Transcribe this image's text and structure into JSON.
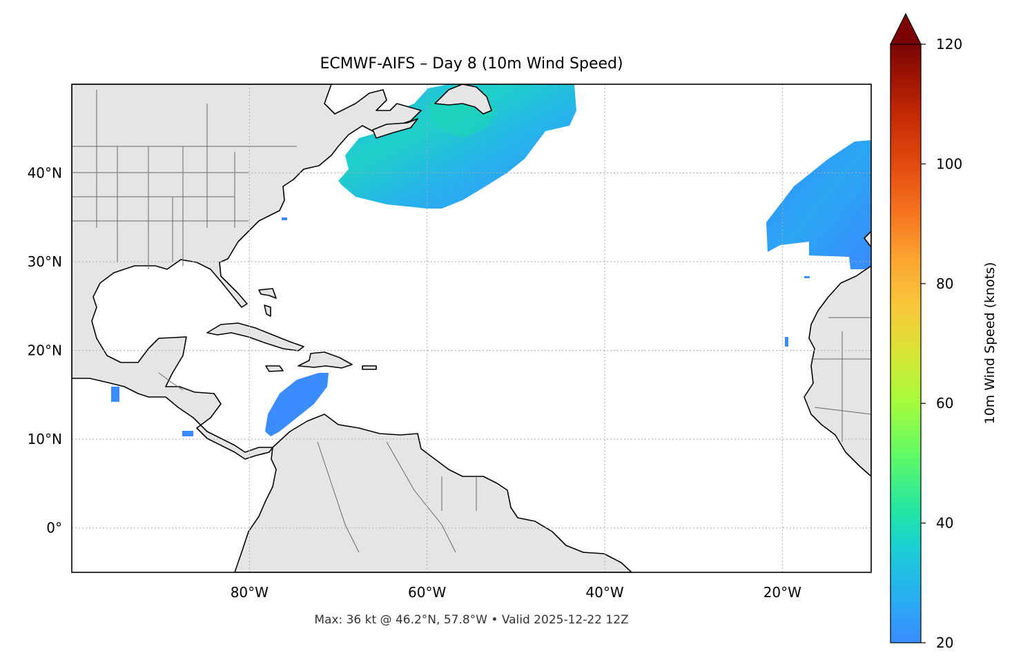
{
  "title": "ECMWF-AIFS – Day 8 (10m Wind Speed)",
  "footer": "Max: 36 kt @ 46.2°N, 57.8°W • Valid 2025-12-22 12Z",
  "map": {
    "projection": "PlateCarree",
    "lon_range": [
      -100,
      -10
    ],
    "lat_range": [
      -5,
      50
    ],
    "gridlines": true,
    "lon_ticks": [
      {
        "value": -80,
        "label": "80°W"
      },
      {
        "value": -60,
        "label": "60°W"
      },
      {
        "value": -40,
        "label": "40°W"
      },
      {
        "value": -20,
        "label": "20°W"
      }
    ],
    "lat_ticks": [
      {
        "value": 40,
        "label": "40°N"
      },
      {
        "value": 30,
        "label": "30°N"
      },
      {
        "value": 20,
        "label": "20°N"
      },
      {
        "value": 10,
        "label": "10°N"
      },
      {
        "value": 0,
        "label": "0°"
      }
    ],
    "colors": {
      "land": "#e5e5e5",
      "coastline": "#000000",
      "borders": "#666666",
      "ocean": "#ffffff"
    },
    "wind_regions": [
      {
        "name": "North Atlantic / Newfoundland system",
        "min_kt": 20,
        "max_kt": 36,
        "max_lat": 46.2,
        "max_lon": -57.8
      },
      {
        "name": "Eastern Atlantic near Iberia / Morocco",
        "min_kt": 20,
        "max_kt": 27
      },
      {
        "name": "Caribbean Sea (Colombia coast)",
        "min_kt": 20,
        "max_kt": 23
      }
    ]
  },
  "colorbar": {
    "label": "10m Wind Speed (knots)",
    "min": 20,
    "max": 120,
    "extend": "max",
    "ticks": [
      {
        "value": 20,
        "label": "20"
      },
      {
        "value": 40,
        "label": "40"
      },
      {
        "value": 60,
        "label": "60"
      },
      {
        "value": 80,
        "label": "80"
      },
      {
        "value": 100,
        "label": "100"
      },
      {
        "value": 120,
        "label": "120"
      }
    ],
    "colormap": "turbo",
    "stops": [
      {
        "offset": 0.0,
        "color": "#3a8cff"
      },
      {
        "offset": 0.08,
        "color": "#27b0f0"
      },
      {
        "offset": 0.16,
        "color": "#1bcfd4"
      },
      {
        "offset": 0.22,
        "color": "#22e6a2"
      },
      {
        "offset": 0.32,
        "color": "#66fa64"
      },
      {
        "offset": 0.4,
        "color": "#a4fb3c"
      },
      {
        "offset": 0.48,
        "color": "#d6e634"
      },
      {
        "offset": 0.56,
        "color": "#f8c83a"
      },
      {
        "offset": 0.64,
        "color": "#fca532"
      },
      {
        "offset": 0.72,
        "color": "#f67220"
      },
      {
        "offset": 0.8,
        "color": "#e24b0f"
      },
      {
        "offset": 0.88,
        "color": "#c42a04"
      },
      {
        "offset": 0.95,
        "color": "#9a1303"
      },
      {
        "offset": 1.0,
        "color": "#7a0403"
      }
    ]
  }
}
